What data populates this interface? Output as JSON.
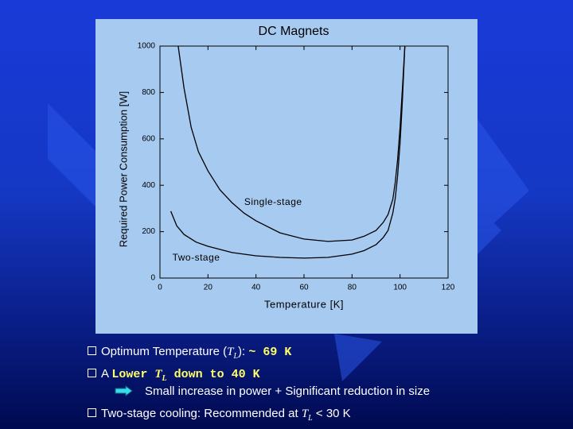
{
  "chart_data": {
    "type": "line",
    "title": "DC Magnets",
    "xlabel": "Temperature [K]",
    "ylabel": "Required Power Consumption [W]",
    "xlim": [
      0,
      120
    ],
    "xticks": [
      0,
      20,
      40,
      60,
      80,
      100,
      120
    ],
    "ylim": [
      0,
      1000
    ],
    "yticks": [
      0,
      200,
      400,
      600,
      800,
      1000
    ],
    "series": [
      {
        "name": "Single-stage",
        "color": "#000000",
        "x": [
          7.6,
          10,
          13,
          16,
          20,
          25,
          30,
          35,
          40,
          50,
          60,
          70,
          80,
          85,
          90,
          93,
          95,
          97,
          98,
          99,
          100,
          101,
          102
        ],
        "y": [
          1000,
          820,
          650,
          545,
          462,
          380,
          325,
          280,
          247,
          195,
          168,
          158,
          164,
          180,
          205,
          240,
          274,
          340,
          411,
          510,
          650,
          820,
          1000
        ]
      },
      {
        "name": "Two-stage",
        "color": "#000000",
        "x": [
          4.5,
          7,
          10,
          15,
          20,
          30,
          40,
          50,
          60,
          70,
          80,
          85,
          90,
          93,
          95,
          97,
          98,
          99,
          100,
          101,
          102
        ],
        "y": [
          288,
          225,
          188,
          155,
          137,
          110,
          96,
          89,
          86,
          89,
          103,
          118,
          144,
          175,
          205,
          280,
          342,
          440,
          582,
          770,
          1000
        ]
      }
    ]
  },
  "bullets": [
    [
      "Optimum Temperature (",
      "T",
      "L",
      "): ",
      "~ 69 K"
    ],
    [
      "A ",
      "Lower ",
      "T",
      "L",
      " down to 40 K"
    ],
    [
      "Small increase in power + Significant reduction in size"
    ],
    [
      "Two-stage cooling: Recommended at ",
      "T",
      "L",
      " < 30 K"
    ]
  ]
}
